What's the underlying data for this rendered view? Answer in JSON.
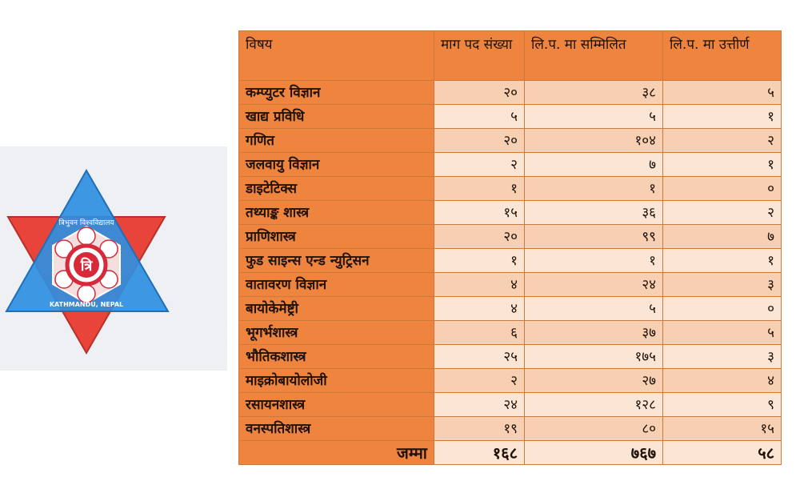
{
  "logo": {
    "name": "tribhuvan-university-logo",
    "colors": {
      "red": "#e8443a",
      "blue": "#2f8fe0",
      "ring_red": "#d62a3a"
    },
    "text_top": "त्रिभुवन विश्वविद्यालय",
    "text_bottom": "KATHMANDU, NEPAL",
    "monogram": "त्रि"
  },
  "table": {
    "headers": [
      "विषय",
      "माग पद संख्या",
      "लि.प. मा सम्मिलित",
      "लि.प. मा उत्तीर्ण"
    ],
    "rows": [
      [
        "कम्प्युटर विज्ञान",
        "२०",
        "३८",
        "५"
      ],
      [
        "खाद्य प्रविधि",
        "५",
        "५",
        "१"
      ],
      [
        "गणित",
        "२०",
        "१०४",
        "२"
      ],
      [
        "जलवायु विज्ञान",
        "२",
        "७",
        "१"
      ],
      [
        "डाइटेटिक्स",
        "१",
        "१",
        "०"
      ],
      [
        "तथ्याङ्क शास्त्र",
        "१५",
        "३६",
        "२"
      ],
      [
        "प्राणिशास्त्र",
        "२०",
        "९९",
        "७"
      ],
      [
        "फुड साइन्स एन्ड न्युट्रिसन",
        "१",
        "१",
        "१"
      ],
      [
        "वातावरण विज्ञान",
        "४",
        "२४",
        "३"
      ],
      [
        "बायोकेमेष्ट्री",
        "४",
        "५",
        "०"
      ],
      [
        "भूगर्भशास्त्र",
        "६",
        "३७",
        "५"
      ],
      [
        "भौतिकशास्त्र",
        "२५",
        "१७५",
        "३"
      ],
      [
        "माइक्रोबायोलोजी",
        "२",
        "२७",
        "४"
      ],
      [
        "रसायनशास्त्र",
        "२४",
        "१२८",
        "९"
      ],
      [
        "वनस्पतिशास्त्र",
        "१९",
        "८०",
        "१५"
      ]
    ],
    "total": {
      "label": "जम्मा",
      "values": [
        "१६८",
        "७६७",
        "५८"
      ]
    },
    "colors": {
      "header": "#ee843e",
      "cell_light": "#fbe5d5",
      "cell_mid": "#f7cfb3",
      "border": "#c97a3c"
    }
  }
}
